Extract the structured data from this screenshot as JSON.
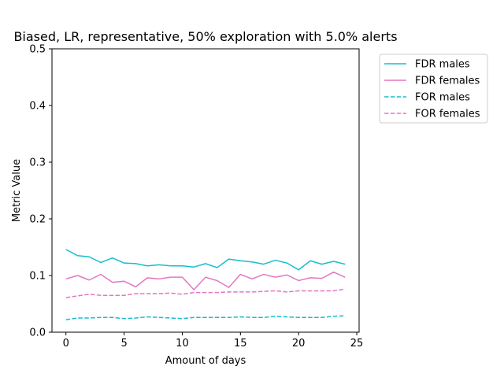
{
  "chart_data": {
    "type": "line",
    "title": "Biased, LR, representative, 50% exploration with 5.0% alerts",
    "xlabel": "Amount of days",
    "ylabel": "Metric Value",
    "xlim": [
      -1.2,
      25.2
    ],
    "ylim": [
      0,
      0.5
    ],
    "xticks": [
      0,
      5,
      10,
      15,
      20,
      25
    ],
    "xtick_labels": [
      "0",
      "5",
      "10",
      "15",
      "20",
      "25"
    ],
    "yticks": [
      0.0,
      0.1,
      0.2,
      0.3,
      0.4,
      0.5
    ],
    "ytick_labels": [
      "0.0",
      "0.1",
      "0.2",
      "0.3",
      "0.4",
      "0.5"
    ],
    "grid": false,
    "legend_position": "outside-upper-right",
    "x": [
      0,
      1,
      2,
      3,
      4,
      5,
      6,
      7,
      8,
      9,
      10,
      11,
      12,
      13,
      14,
      15,
      16,
      17,
      18,
      19,
      20,
      21,
      22,
      23,
      24
    ],
    "series": [
      {
        "name": "FDR males",
        "color": "#17becf",
        "dash": "solid",
        "values": [
          0.146,
          0.135,
          0.133,
          0.123,
          0.131,
          0.122,
          0.121,
          0.117,
          0.119,
          0.117,
          0.117,
          0.115,
          0.121,
          0.114,
          0.129,
          0.126,
          0.124,
          0.12,
          0.127,
          0.122,
          0.11,
          0.126,
          0.12,
          0.125,
          0.12
        ]
      },
      {
        "name": "FDR females",
        "color": "#e377c2",
        "dash": "solid",
        "values": [
          0.094,
          0.1,
          0.092,
          0.102,
          0.088,
          0.09,
          0.08,
          0.096,
          0.094,
          0.097,
          0.097,
          0.075,
          0.097,
          0.091,
          0.079,
          0.102,
          0.094,
          0.102,
          0.097,
          0.101,
          0.091,
          0.096,
          0.095,
          0.106,
          0.097
        ]
      },
      {
        "name": "FOR males",
        "color": "#17becf",
        "dash": "dashed",
        "values": [
          0.022,
          0.025,
          0.025,
          0.026,
          0.026,
          0.024,
          0.025,
          0.027,
          0.026,
          0.025,
          0.024,
          0.026,
          0.026,
          0.026,
          0.026,
          0.027,
          0.026,
          0.026,
          0.028,
          0.027,
          0.026,
          0.026,
          0.026,
          0.028,
          0.029
        ]
      },
      {
        "name": "FOR females",
        "color": "#e377c2",
        "dash": "dashed",
        "values": [
          0.061,
          0.064,
          0.067,
          0.065,
          0.065,
          0.065,
          0.068,
          0.068,
          0.068,
          0.069,
          0.067,
          0.07,
          0.07,
          0.07,
          0.071,
          0.071,
          0.071,
          0.072,
          0.073,
          0.071,
          0.073,
          0.073,
          0.073,
          0.073,
          0.076
        ]
      }
    ]
  }
}
